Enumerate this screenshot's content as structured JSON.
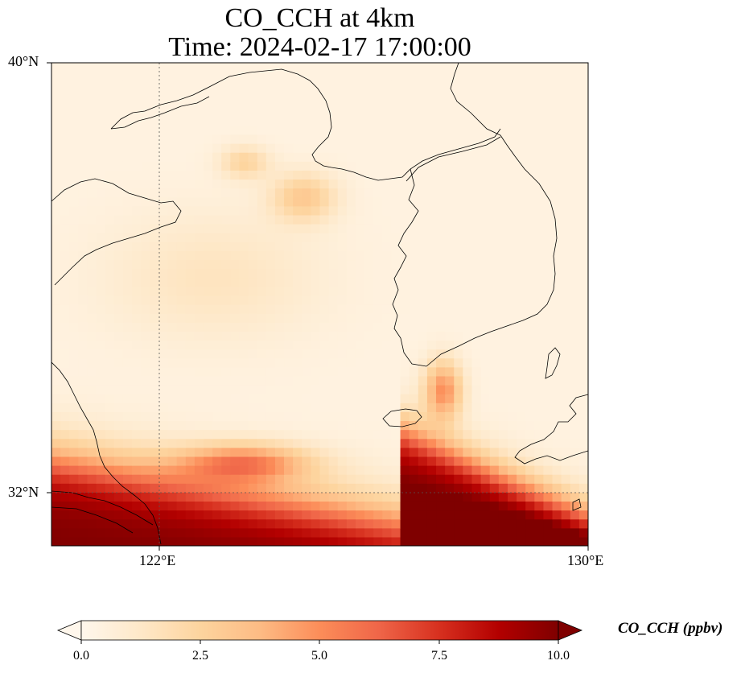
{
  "title": {
    "line1": "CO_CCH at 4km",
    "line2": "Time: 2024-02-17 17:00:00"
  },
  "axes": {
    "lat_ticks": [
      "40°N",
      "32°N"
    ],
    "lon_ticks": [
      "122°E",
      "130°E"
    ],
    "lat_range": [
      31,
      40
    ],
    "lon_range": [
      120,
      130
    ],
    "gridlines": "dotted at 32°N and 122°E"
  },
  "colorbar": {
    "label": "CO_CCH (ppbv)",
    "ticks": [
      "0.0",
      "2.5",
      "5.0",
      "7.5",
      "10.0"
    ],
    "range": [
      0,
      10
    ],
    "colormap": "OrRd",
    "extend": "both",
    "colors": [
      "#fff7ec",
      "#fee8c8",
      "#fdd49e",
      "#fdbb84",
      "#fc8d59",
      "#ef6548",
      "#d7301f",
      "#b30000",
      "#7f0000"
    ]
  },
  "chart_data": {
    "type": "heatmap",
    "title": "CO_CCH at 4km\nTime: 2024-02-17 17:00:00",
    "xlabel": "",
    "ylabel": "",
    "x_unit": "°E",
    "y_unit": "°N",
    "xlim": [
      120,
      130
    ],
    "ylim": [
      31,
      40
    ],
    "value_range": [
      0,
      10
    ],
    "units": "ppbv",
    "features": [
      {
        "region": "southwest corner near 120-121°E, 31-32.5°N",
        "value": 10
      },
      {
        "region": "southern band 121-127°E, 31-31.8°N",
        "value": 10
      },
      {
        "region": "southeast wedge 127-129.5°E, 31-32.5°N",
        "value": 10
      },
      {
        "region": "plume centered 123.5°E, 32.5°N",
        "value": 7
      },
      {
        "region": "plume near Jeju, 127.2°E, 34°N",
        "value": 6.5
      },
      {
        "region": "Yellow Sea hotspot 124.7°E, 37.5°N",
        "value": 3
      },
      {
        "region": "Bohai hotspot 123.6°E, 38.1°N",
        "value": 2.5
      },
      {
        "region": "northern and eastern background",
        "value": 0.5
      }
    ]
  }
}
